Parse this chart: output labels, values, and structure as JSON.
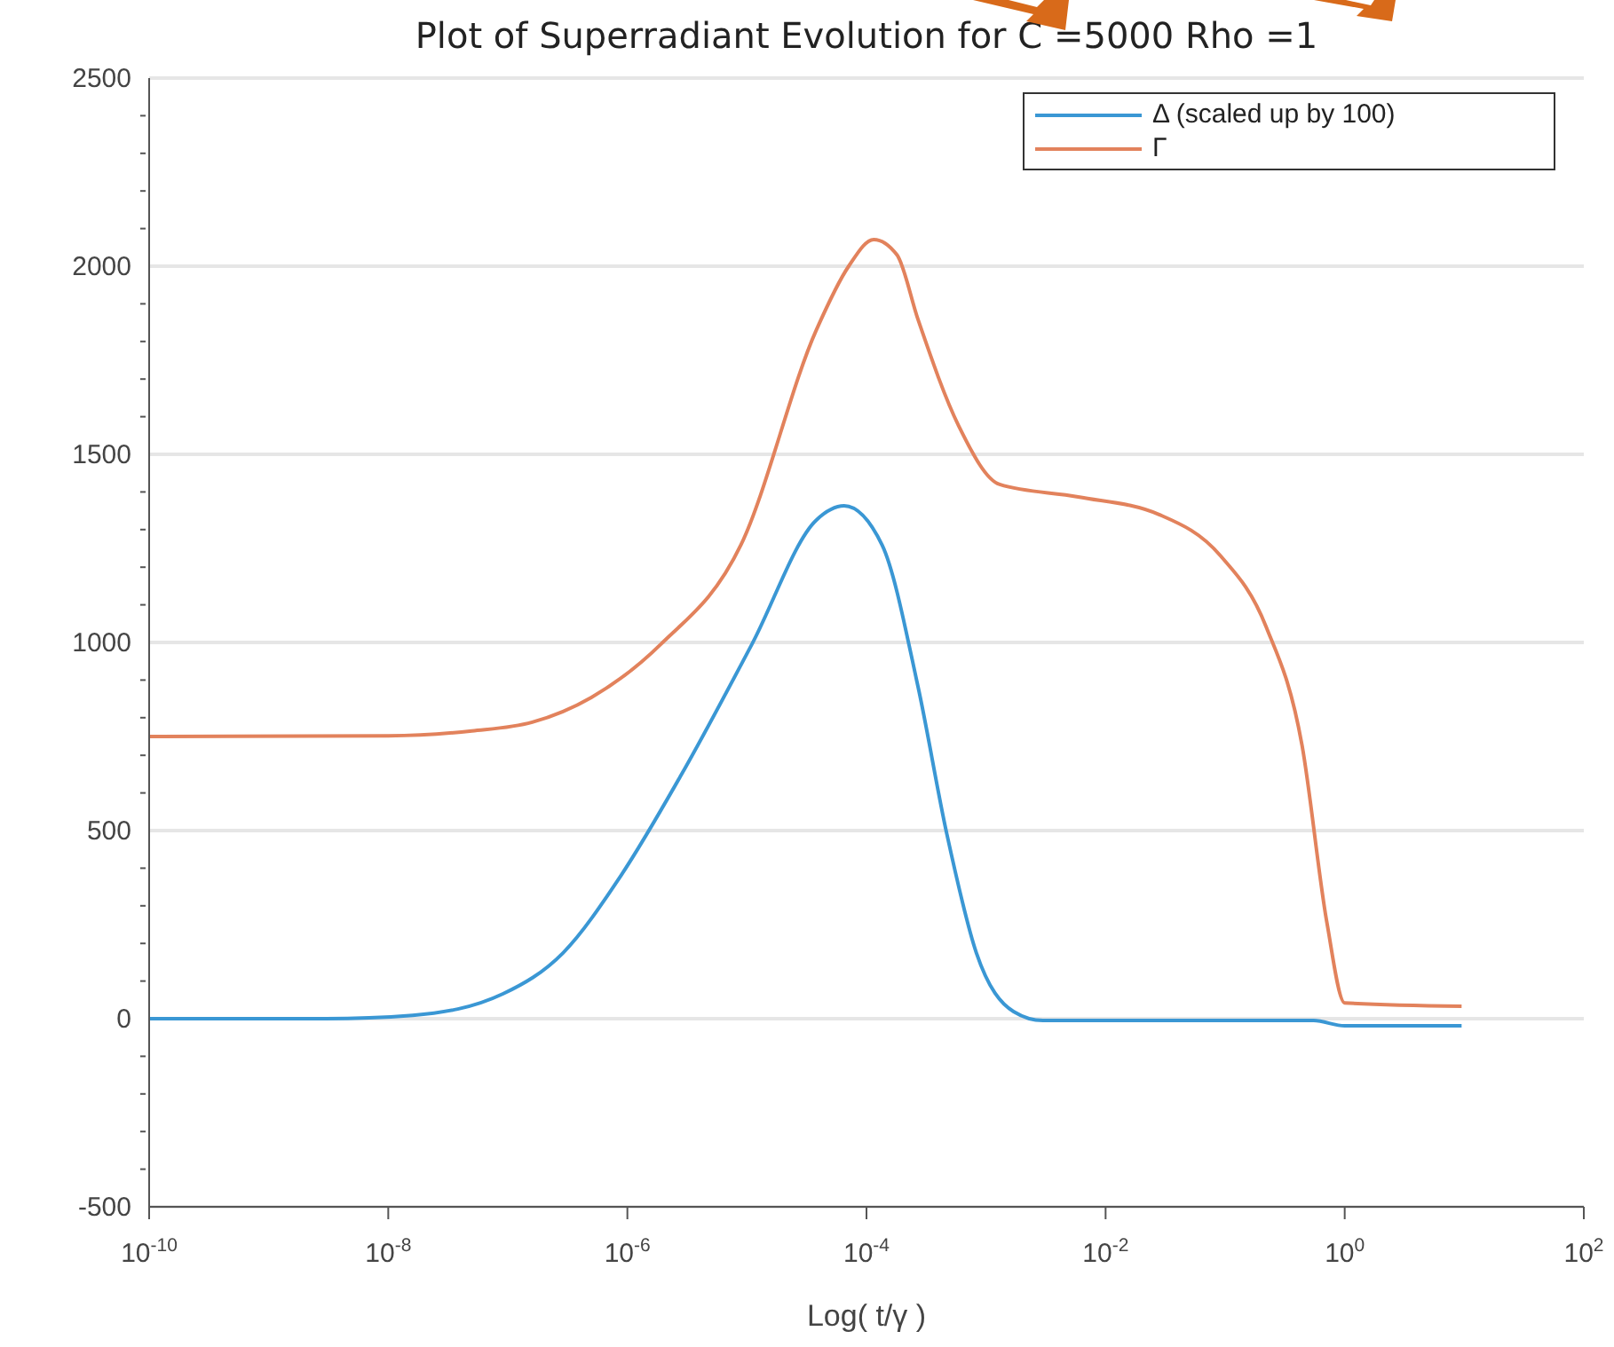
{
  "chart_data": {
    "type": "line",
    "title": "Plot of Superradiant Evolution for C =5000 Rho =1",
    "xlabel": "Log( t/γ )",
    "log": "x",
    "grid": "y",
    "legend": "top right",
    "line_style": "solid",
    "marker": "none",
    "xlim": [
      1e-10,
      100
    ],
    "xticks": [
      {
        "value": 1e-10,
        "label": "10$^{-10}$"
      },
      {
        "value": 1e-08,
        "label": "10$^{-8}$"
      },
      {
        "value": 1e-06,
        "label": "10$^{-6}$"
      },
      {
        "value": 0.0001,
        "label": "10$^{-4}$"
      },
      {
        "value": 0.01,
        "label": "10$^{-2}$"
      },
      {
        "value": 1,
        "label": "10$^{0}$"
      },
      {
        "value": 100,
        "label": "10$^{2}$"
      }
    ],
    "ylim": [
      -500,
      2500
    ],
    "yticks": [
      -500,
      {
        "value": -400,
        "label": null
      },
      {
        "value": -300,
        "label": null
      },
      {
        "value": -200,
        "label": null
      },
      {
        "value": -100,
        "label": null
      },
      0,
      {
        "value": 100,
        "label": null
      },
      {
        "value": 200,
        "label": null
      },
      {
        "value": 300,
        "label": null
      },
      {
        "value": 400,
        "label": null
      },
      500,
      {
        "value": 600,
        "label": null
      },
      {
        "value": 700,
        "label": null
      },
      {
        "value": 800,
        "label": null
      },
      {
        "value": 900,
        "label": null
      },
      1000,
      {
        "value": 1100,
        "label": null
      },
      {
        "value": 1200,
        "label": null
      },
      {
        "value": 1300,
        "label": null
      },
      {
        "value": 1400,
        "label": null
      },
      1500,
      {
        "value": 1600,
        "label": null
      },
      {
        "value": 1700,
        "label": null
      },
      {
        "value": 1800,
        "label": null
      },
      {
        "value": 1900,
        "label": null
      },
      2000,
      {
        "value": 2100,
        "label": null
      },
      {
        "value": 2200,
        "label": null
      },
      {
        "value": 2300,
        "label": null
      },
      {
        "value": 2400,
        "label": null
      },
      2500
    ],
    "series": [
      {
        "name": "Δ (scaled up by 100)",
        "color": "#3a97d4",
        "x": [
          1e-10,
          3e-09,
          1.6e-08,
          9.1e-08,
          2.9e-07,
          8.9e-07,
          2.8e-06,
          1.1e-05,
          3.8e-05,
          6.5e-05,
          0.000135,
          0.00027,
          0.00047,
          0.00083,
          0.0017,
          0.003,
          0.55,
          1,
          9.5
        ],
        "values": [
          0,
          0,
          9,
          66,
          175,
          382,
          646,
          995,
          1325,
          1363,
          1259,
          882,
          491,
          175,
          19,
          -5,
          -5,
          -19,
          -19
        ]
      },
      {
        "name": "Γ",
        "color": "#e2825c",
        "x": [
          1e-10,
          1e-08,
          5e-08,
          1.6e-07,
          5e-07,
          1.9e-06,
          8.9e-06,
          3.8e-05,
          7.1e-05,
          0.000115,
          0.00018,
          0.00027,
          0.00059,
          0.0013,
          0.0059,
          0.028,
          0.091,
          0.22,
          0.44,
          0.71,
          1,
          9.5
        ],
        "values": [
          750,
          752,
          765,
          788,
          854,
          995,
          1259,
          1830,
          2000,
          2071,
          2030,
          1858,
          1576,
          1420,
          1387,
          1340,
          1231,
          1042,
          726,
          255,
          42,
          33
        ]
      }
    ]
  }
}
